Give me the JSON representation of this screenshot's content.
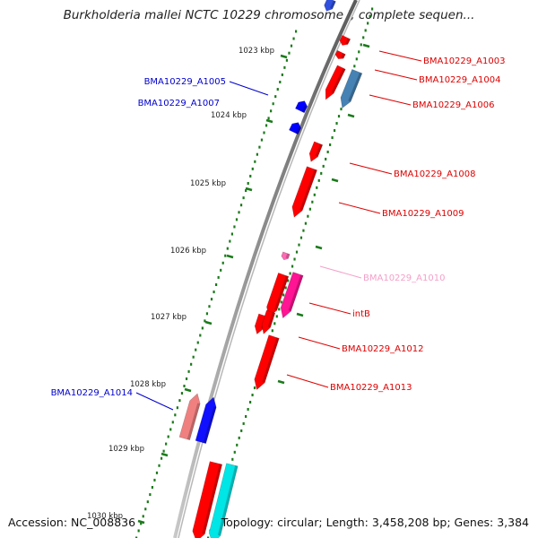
{
  "title": "Burkholderia mallei NCTC 10229 chromosome I, complete sequen...",
  "footer": {
    "accession": "Accession: NC_008836",
    "summary": "Topology: circular; Length: 3,458,208 bp; Genes: 3,384"
  },
  "ticks": [
    {
      "label": "1023 kbp"
    },
    {
      "label": "1024 kbp"
    },
    {
      "label": "1025 kbp"
    },
    {
      "label": "1026 kbp"
    },
    {
      "label": "1027 kbp"
    },
    {
      "label": "1028 kbp"
    },
    {
      "label": "1029 kbp"
    },
    {
      "label": "1030 kbp"
    }
  ],
  "genes": [
    {
      "name": "BMA10229_A1003",
      "strand": "+",
      "color": "#ff0000"
    },
    {
      "name": "BMA10229_A1004",
      "strand": "+",
      "color": "#ff0000"
    },
    {
      "name": "BMA10229_A1006",
      "strand": "+",
      "color": "#4682b4"
    },
    {
      "name": "BMA10229_A1005",
      "strand": "-",
      "color": "#0000ff"
    },
    {
      "name": "BMA10229_A1007",
      "strand": "-",
      "color": "#0000ff"
    },
    {
      "name": "BMA10229_A1008",
      "strand": "+",
      "color": "#ff0000"
    },
    {
      "name": "BMA10229_A1009",
      "strand": "+",
      "color": "#ff0000"
    },
    {
      "name": "BMA10229_A1010",
      "strand": "+",
      "color": "#ff69b4"
    },
    {
      "name": "intB",
      "strand": "+",
      "color": "#ff1493"
    },
    {
      "name": "BMA10229_A1012",
      "strand": "+",
      "color": "#ff0000"
    },
    {
      "name": "BMA10229_A1013",
      "strand": "+",
      "color": "#ff0000"
    },
    {
      "name": "BMA10229_A1014",
      "strand": "-",
      "color": "#f08080"
    }
  ],
  "colors": {
    "label_red": "#dd0000",
    "label_blue": "#0000cc",
    "label_pink": "#f4a0c8",
    "tick_green": "#1a7a1a",
    "backbone": "#808080"
  }
}
